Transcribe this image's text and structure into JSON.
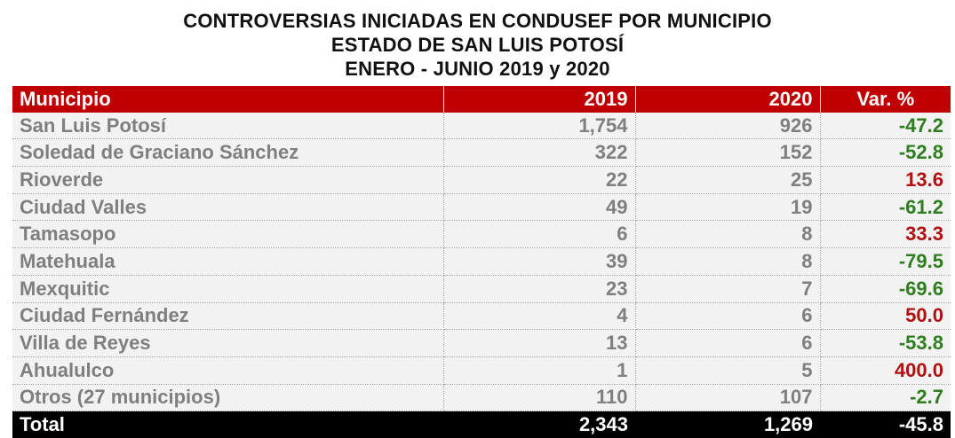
{
  "title": {
    "line1": "CONTROVERSIAS INICIADAS EN CONDUSEF POR MUNICIPIO",
    "line2": "ESTADO DE SAN LUIS POTOSÍ",
    "line3": "ENERO - JUNIO 2019 y 2020"
  },
  "table": {
    "headers": {
      "municipio": "Municipio",
      "y2019": "2019",
      "y2020": "2020",
      "var": "Var. %"
    },
    "rows": [
      {
        "municipio": "San Luis Potosí",
        "y2019": "1,754",
        "y2020": "926",
        "var": "-47.2",
        "trend": "neg"
      },
      {
        "municipio": "Soledad de Graciano Sánchez",
        "y2019": "322",
        "y2020": "152",
        "var": "-52.8",
        "trend": "neg"
      },
      {
        "municipio": "Rioverde",
        "y2019": "22",
        "y2020": "25",
        "var": "13.6",
        "trend": "pos"
      },
      {
        "municipio": "Ciudad Valles",
        "y2019": "49",
        "y2020": "19",
        "var": "-61.2",
        "trend": "neg"
      },
      {
        "municipio": "Tamasopo",
        "y2019": "6",
        "y2020": "8",
        "var": "33.3",
        "trend": "pos"
      },
      {
        "municipio": "Matehuala",
        "y2019": "39",
        "y2020": "8",
        "var": "-79.5",
        "trend": "neg"
      },
      {
        "municipio": "Mexquitic",
        "y2019": "23",
        "y2020": "7",
        "var": "-69.6",
        "trend": "neg"
      },
      {
        "municipio": "Ciudad Fernández",
        "y2019": "4",
        "y2020": "6",
        "var": "50.0",
        "trend": "pos"
      },
      {
        "municipio": "Villa de Reyes",
        "y2019": "13",
        "y2020": "6",
        "var": "-53.8",
        "trend": "neg"
      },
      {
        "municipio": "Ahualulco",
        "y2019": "1",
        "y2020": "5",
        "var": "400.0",
        "trend": "pos"
      },
      {
        "municipio": "Otros (27 municipios)",
        "y2019": "110",
        "y2020": "107",
        "var": "-2.7",
        "trend": "neg"
      }
    ],
    "total": {
      "label": "Total",
      "y2019": "2,343",
      "y2020": "1,269",
      "var": "-45.8"
    }
  },
  "colors": {
    "header_bg": "#c00000",
    "row_bg": "#f2f2f2",
    "row_text": "#7f7f7f",
    "negative": "#2e7d1e",
    "positive": "#b01010",
    "total_bg": "#000000"
  }
}
